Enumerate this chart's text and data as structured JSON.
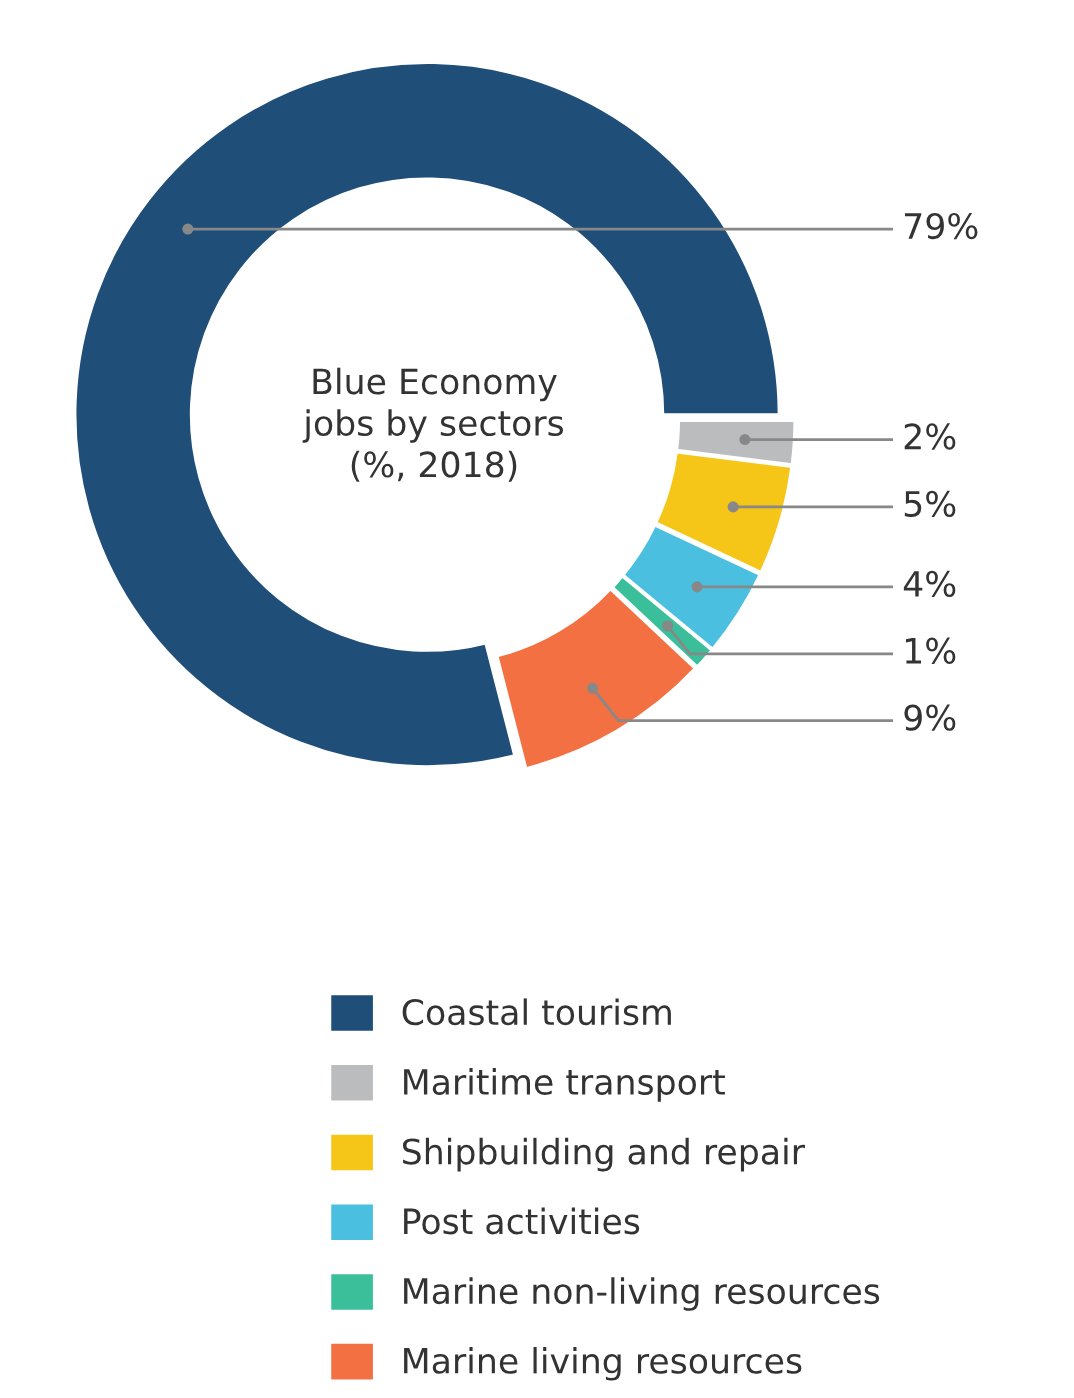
{
  "chart_data": {
    "type": "donut",
    "title": "Blue Economy\njobs by sectors\n(%, 2018)",
    "categories": [
      "Coastal tourism",
      "Maritime transport",
      "Shipbuilding and repair",
      "Post activities",
      "Marine non-living resources",
      "Marine living resources"
    ],
    "values": [
      79,
      2,
      5,
      4,
      1,
      9
    ],
    "value_labels": [
      "79%",
      "2%",
      "5%",
      "4%",
      "1%",
      "9%"
    ],
    "colors": [
      "#1f4e79",
      "#bbbcbe",
      "#f5c518",
      "#4bbfe0",
      "#3bbf9a",
      "#f37042"
    ],
    "legend": "bottom"
  }
}
